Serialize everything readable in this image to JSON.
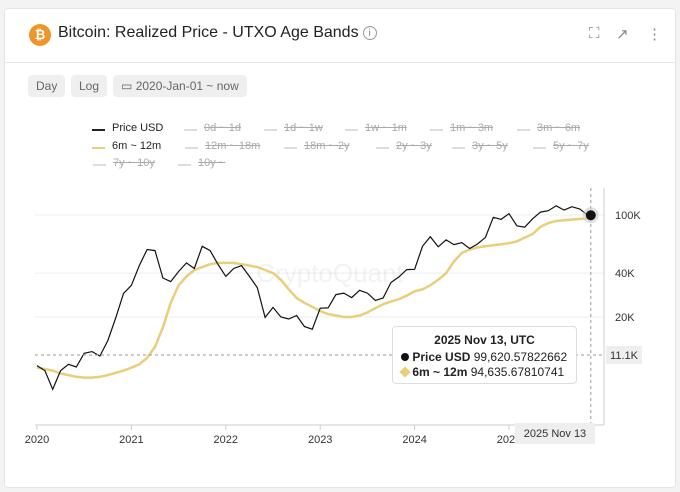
{
  "header": {
    "title": "Bitcoin: Realized Price - UTXO Age Bands",
    "logo": "bitcoin-logo",
    "info_icon": "info-icon",
    "actions": [
      "fullscreen-icon",
      "open-external-icon",
      "more-vertical-icon"
    ]
  },
  "toolbar": {
    "interval": "Day",
    "scale": "Log",
    "date_range": "2020-Jan-01 ~ now"
  },
  "legend": [
    {
      "label": "Price USD",
      "active": true,
      "color": "#222222"
    },
    {
      "label": "0d ~ 1d",
      "active": false
    },
    {
      "label": "1d ~ 1w",
      "active": false
    },
    {
      "label": "1w ~ 1m",
      "active": false
    },
    {
      "label": "1m ~ 3m",
      "active": false
    },
    {
      "label": "3m ~ 6m",
      "active": false
    },
    {
      "label": "6m ~ 12m",
      "active": true,
      "color": "#e8cf7a"
    },
    {
      "label": "12m ~ 18m",
      "active": false
    },
    {
      "label": "18m ~ 2y",
      "active": false
    },
    {
      "label": "2y ~ 3y",
      "active": false
    },
    {
      "label": "3y ~ 5y",
      "active": false
    },
    {
      "label": "5y ~ 7y",
      "active": false
    },
    {
      "label": "7y ~ 10y",
      "active": false
    },
    {
      "label": "10y ~",
      "active": false
    }
  ],
  "watermark": "CryptoQuant",
  "chart_data": {
    "type": "line",
    "scale": "log",
    "y_ticks": [
      {
        "value": 100000,
        "label": "100K"
      },
      {
        "value": 40000,
        "label": "40K"
      },
      {
        "value": 20000,
        "label": "20K"
      }
    ],
    "x_ticks": [
      "2020",
      "2021",
      "2022",
      "2023",
      "2024",
      "2025"
    ],
    "x_start": "2020-01",
    "x_interval": "monthly",
    "series": [
      {
        "name": "Price USD",
        "color": "#111111",
        "values": [
          9300,
          8600,
          6400,
          8600,
          9500,
          9100,
          11300,
          11600,
          10800,
          13800,
          19700,
          29000,
          33000,
          45000,
          58000,
          57000,
          37000,
          35000,
          41000,
          47000,
          43000,
          61000,
          57000,
          46000,
          38000,
          43000,
          45000,
          38000,
          31800,
          19900,
          23300,
          20000,
          19400,
          20500,
          17200,
          16500,
          23000,
          23100,
          28500,
          29200,
          27200,
          30500,
          29200,
          26000,
          27000,
          34500,
          37700,
          42300,
          42500,
          61000,
          71000,
          60600,
          67500,
          62700,
          64600,
          59000,
          63300,
          70200,
          96400,
          93400,
          102000,
          84300,
          82500,
          94200,
          104600,
          107000,
          115700,
          108000,
          114000,
          110000,
          99620.58
        ]
      },
      {
        "name": "6m ~ 12m",
        "color": "#e8cf7a",
        "values": [
          9000,
          8800,
          8600,
          8200,
          8000,
          7800,
          7700,
          7700,
          7800,
          8000,
          8300,
          8600,
          9000,
          9500,
          10500,
          12500,
          17000,
          25000,
          33000,
          38000,
          42000,
          44000,
          46000,
          47000,
          47000,
          47000,
          46000,
          45000,
          44000,
          42000,
          40000,
          36000,
          31000,
          27000,
          25000,
          23500,
          22000,
          21000,
          20500,
          20000,
          20000,
          20500,
          21500,
          23000,
          24500,
          25500,
          26500,
          28000,
          30000,
          31000,
          33000,
          36000,
          40000,
          48000,
          55000,
          58000,
          60000,
          61000,
          62000,
          63000,
          64000,
          66000,
          70000,
          74000,
          83000,
          88000,
          91000,
          92000,
          93000,
          94000,
          94635.68
        ]
      }
    ]
  },
  "crosshair": {
    "y_label": "11.1K",
    "x_label": "2025 Nov 13"
  },
  "tooltip": {
    "date": "2025 Nov 13, UTC",
    "rows": [
      {
        "label": "Price USD",
        "value": "99,620.57822662"
      },
      {
        "label": "6m ~ 12m",
        "value": "94,635.67810741"
      }
    ]
  }
}
